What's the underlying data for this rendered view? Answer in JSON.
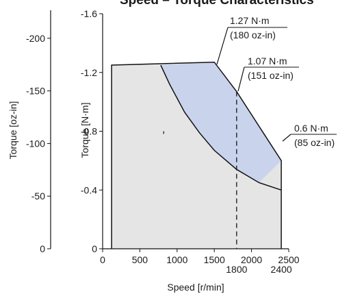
{
  "chart_data": {
    "type": "area",
    "title": "Speed – Torque Characteristics",
    "xlabel": "Speed [r/min]",
    "ylabel": "Torque [N·m]",
    "ylabel2": "Torque [oz-in]",
    "xlim": [
      0,
      2500
    ],
    "ylim": [
      0,
      -1.6
    ],
    "y2lim": [
      0,
      -226.6
    ],
    "x_ticks": [
      0,
      500,
      1000,
      1500,
      2000,
      2500
    ],
    "x_ticks_secondary": [
      1800,
      2400
    ],
    "y_ticks": [
      "0",
      "-0.4",
      "-0.8",
      "-1.2",
      "-1.6"
    ],
    "y_tick_values": [
      0,
      -0.4,
      -0.8,
      -1.2,
      -1.6
    ],
    "y2_ticks": [
      "0",
      "-50",
      "-100",
      "-150",
      "-200"
    ],
    "y2_tick_values": [
      0,
      -50,
      -100,
      -150,
      -200
    ],
    "grid": false,
    "colors": {
      "continuous": "#e5e5e5",
      "intermittent": "#c9d3ec",
      "outline": "#111111"
    },
    "series": [
      {
        "values": [
          {
            "x": 120,
            "y": 0
          },
          {
            "x": 120,
            "y": -1.25
          },
          {
            "x": 1500,
            "y": -1.27
          },
          {
            "x": 1800,
            "y": -1.07
          },
          {
            "x": 2400,
            "y": -0.6
          },
          {
            "x": 2400,
            "y": 0
          }
        ]
      },
      {
        "values": [
          {
            "x": 780,
            "y": -1.25
          },
          {
            "x": 900,
            "y": -1.12
          },
          {
            "x": 1100,
            "y": -0.93
          },
          {
            "x": 1300,
            "y": -0.79
          },
          {
            "x": 1500,
            "y": -0.67
          },
          {
            "x": 1800,
            "y": -0.54
          },
          {
            "x": 2100,
            "y": -0.45
          },
          {
            "x": 2400,
            "y": -0.4
          }
        ]
      }
    ],
    "annotations": [
      {
        "line1": "1.27 N·m",
        "line2": "(180 oz-in)",
        "x": 1500,
        "y": -1.27
      },
      {
        "line1": "1.07 N·m",
        "line2": "(151 oz-in)",
        "x": 1800,
        "y": -1.07
      },
      {
        "line1": "0.6 N·m",
        "line2": "(85 oz-in)",
        "x": 2400,
        "y": -0.6
      }
    ],
    "reference_line": {
      "x": 1800,
      "style": "dashed"
    }
  }
}
